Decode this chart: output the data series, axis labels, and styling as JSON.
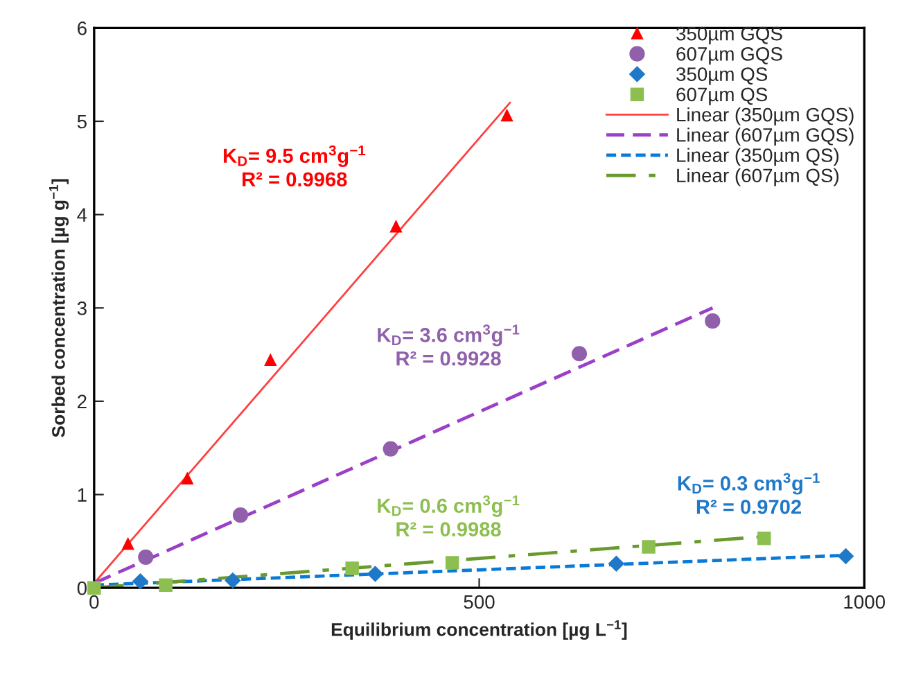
{
  "chart_data": {
    "type": "scatter",
    "xlabel": "Equilibrium concentration [µg L$^{−1}$]",
    "ylabel": "Sorbed concentration [µg g$^{−1}$]",
    "xlim": [
      0,
      1000
    ],
    "xticks": [
      0,
      500,
      1000
    ],
    "ylim": [
      0,
      6
    ],
    "yticks": [
      0,
      1,
      2,
      3,
      4,
      5,
      6
    ],
    "grid": false,
    "legend": "top right",
    "series": [
      {
        "name": "350µm GQS",
        "marker": "triangle",
        "color": "#ff0000",
        "x": [
          44,
          121,
          229,
          392,
          536
        ],
        "values": [
          0.47,
          1.17,
          2.44,
          3.87,
          5.06
        ]
      },
      {
        "name": "607µm GQS",
        "marker": "circle",
        "color": "#9060aa",
        "x": [
          67,
          190,
          385,
          630,
          803
        ],
        "values": [
          0.33,
          0.78,
          1.49,
          2.51,
          2.86
        ]
      },
      {
        "name": "350µm QS",
        "marker": "diamond",
        "color": "#1f78c8",
        "x": [
          60,
          180,
          365,
          678,
          976
        ],
        "values": [
          0.07,
          0.08,
          0.15,
          0.26,
          0.34
        ]
      },
      {
        "name": "607µm QS",
        "marker": "square",
        "color": "#8cbf50",
        "x": [
          0,
          93,
          335,
          465,
          720,
          870
        ],
        "values": [
          0,
          0.03,
          0.21,
          0.27,
          0.44,
          0.53
        ]
      },
      {
        "name": "Linear (350µm GQS)",
        "type": "line",
        "line_style": "solid",
        "color": "#ff4040",
        "x": [
          0,
          540
        ],
        "values": [
          0.05,
          5.2
        ]
      },
      {
        "name": "Linear (607µm GQS)",
        "type": "line",
        "line_style": "dashed",
        "color": "#9b3fc8",
        "x": [
          0,
          803
        ],
        "values": [
          0.05,
          3.0
        ]
      },
      {
        "name": "Linear (350µm QS)",
        "type": "line",
        "line_style": "dotted",
        "color": "#0a7ad8",
        "x": [
          0,
          980
        ],
        "values": [
          0.03,
          0.35
        ]
      },
      {
        "name": "Linear (607µm QS)",
        "type": "line",
        "line_style": "dashdot",
        "color": "#6a9a2e",
        "x": [
          0,
          870
        ],
        "values": [
          0.0,
          0.55
        ]
      }
    ],
    "annotations": [
      "K$_{D}$= 9.5 cm$^{3}$g$^{−1}$\nR² = 0.9968",
      "K$_{D}$= 3.6 cm$^{3}$g$^{−1}$\nR² = 0.9928",
      "K$_{D}$= 0.3 cm$^{3}$g$^{−1}$\nR² = 0.9702",
      "K$_{D}$= 0.6 cm$^{3}$g$^{−1}$\nR² = 0.9988"
    ]
  }
}
